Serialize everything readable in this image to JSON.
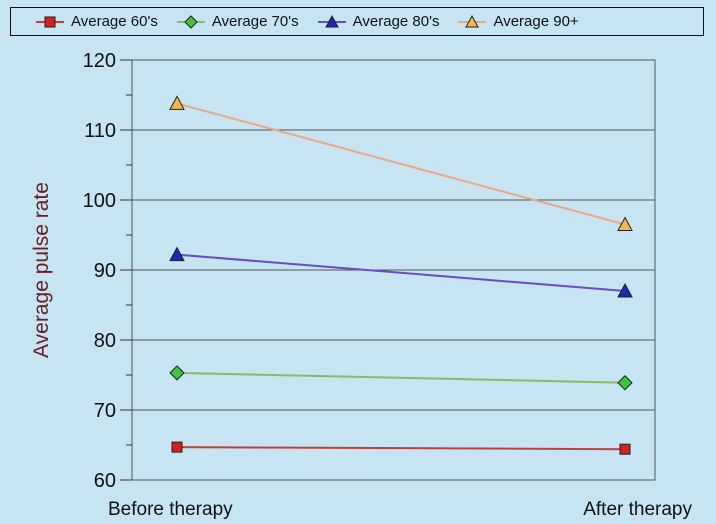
{
  "chart_data": {
    "type": "line",
    "categories": [
      "Before therapy",
      "After therapy"
    ],
    "ylabel": "Average pulse rate",
    "xlabel": "",
    "ylim": [
      60,
      120
    ],
    "yticks": [
      60,
      70,
      80,
      90,
      100,
      110,
      120
    ],
    "grid": "horizontal",
    "legend": "top",
    "series": [
      {
        "name": "Average 60's",
        "values": [
          64.7,
          64.4
        ],
        "marker": "square",
        "marker_color": "#d42020",
        "line_color": "#c0403a"
      },
      {
        "name": "Average 70's",
        "values": [
          75.3,
          73.9
        ],
        "marker": "diamond",
        "marker_color": "#3ec43e",
        "line_color": "#8db86a"
      },
      {
        "name": "Average 80's",
        "values": [
          92.2,
          87.0
        ],
        "marker": "triangle",
        "marker_color": "#1c28b8",
        "line_color": "#6a4cc0"
      },
      {
        "name": "Average 90+",
        "values": [
          113.8,
          96.5
        ],
        "marker": "triangle",
        "marker_color": "#f2b84a",
        "line_color": "#e8a888"
      }
    ]
  }
}
